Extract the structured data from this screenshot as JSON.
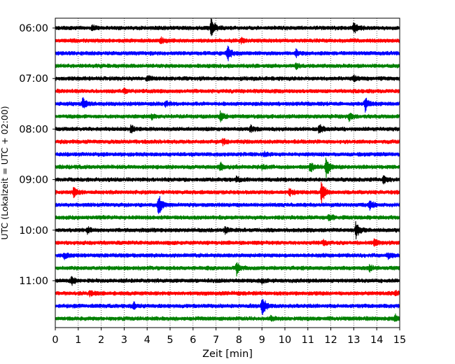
{
  "chart_data": {
    "type": "line",
    "title": "",
    "xlabel": "Zeit  [min]",
    "ylabel": "UTC (Lokalzeit = UTC + 02:00)",
    "xlim": [
      0,
      15
    ],
    "x_ticks": [
      "0",
      "1",
      "2",
      "3",
      "4",
      "5",
      "6",
      "7",
      "8",
      "9",
      "10",
      "11",
      "12",
      "13",
      "14",
      "15"
    ],
    "y_ticks": [
      "06:00",
      "07:00",
      "08:00",
      "09:00",
      "10:00",
      "11:00"
    ],
    "grid_x": true,
    "trace_interval_minutes": 15,
    "colors_cycle": [
      "#000000",
      "#ff0000",
      "#0000ff",
      "#008000"
    ],
    "series": [
      {
        "start": "06:00",
        "color": "#000000",
        "events": [
          {
            "t": 6.8,
            "amp": 1.0
          },
          {
            "t": 13.0,
            "amp": 0.55
          },
          {
            "t": 1.6,
            "amp": 0.2
          }
        ]
      },
      {
        "start": "06:15",
        "color": "#ff0000",
        "events": [
          {
            "t": 4.6,
            "amp": 0.25
          },
          {
            "t": 8.1,
            "amp": 0.2
          }
        ]
      },
      {
        "start": "06:30",
        "color": "#0000ff",
        "events": [
          {
            "t": 7.5,
            "amp": 0.7
          },
          {
            "t": 10.5,
            "amp": 0.25
          }
        ]
      },
      {
        "start": "06:45",
        "color": "#008000",
        "events": [
          {
            "t": 10.5,
            "amp": 0.2
          }
        ]
      },
      {
        "start": "07:00",
        "color": "#000000",
        "events": [
          {
            "t": 4.0,
            "amp": 0.2
          },
          {
            "t": 13.0,
            "amp": 0.2
          }
        ]
      },
      {
        "start": "07:15",
        "color": "#ff0000",
        "events": [
          {
            "t": 3.0,
            "amp": 0.15
          }
        ]
      },
      {
        "start": "07:30",
        "color": "#0000ff",
        "events": [
          {
            "t": 1.2,
            "amp": 0.55
          },
          {
            "t": 13.5,
            "amp": 0.6
          },
          {
            "t": 4.8,
            "amp": 0.2
          }
        ]
      },
      {
        "start": "07:45",
        "color": "#008000",
        "events": [
          {
            "t": 7.2,
            "amp": 0.4
          },
          {
            "t": 12.8,
            "amp": 0.3
          },
          {
            "t": 4.2,
            "amp": 0.2
          }
        ]
      },
      {
        "start": "08:00",
        "color": "#000000",
        "events": [
          {
            "t": 11.5,
            "amp": 0.5
          },
          {
            "t": 3.3,
            "amp": 0.3
          },
          {
            "t": 8.5,
            "amp": 0.3
          }
        ]
      },
      {
        "start": "08:15",
        "color": "#ff0000",
        "events": [
          {
            "t": 7.3,
            "amp": 0.2
          }
        ]
      },
      {
        "start": "08:30",
        "color": "#0000ff",
        "events": [
          {
            "t": 9.1,
            "amp": 0.15
          }
        ]
      },
      {
        "start": "08:45",
        "color": "#008000",
        "events": [
          {
            "t": 11.8,
            "amp": 1.0
          },
          {
            "t": 11.1,
            "amp": 0.5
          },
          {
            "t": 7.2,
            "amp": 0.3
          },
          {
            "t": 9.0,
            "amp": 0.2
          }
        ]
      },
      {
        "start": "09:00",
        "color": "#000000",
        "events": [
          {
            "t": 14.3,
            "amp": 0.35
          },
          {
            "t": 7.9,
            "amp": 0.25
          }
        ]
      },
      {
        "start": "09:15",
        "color": "#ff0000",
        "events": [
          {
            "t": 11.6,
            "amp": 1.1
          },
          {
            "t": 0.8,
            "amp": 0.45
          },
          {
            "t": 10.2,
            "amp": 0.25
          }
        ]
      },
      {
        "start": "09:30",
        "color": "#0000ff",
        "events": [
          {
            "t": 4.5,
            "amp": 1.0
          },
          {
            "t": 13.7,
            "amp": 0.4
          }
        ]
      },
      {
        "start": "09:45",
        "color": "#008000",
        "events": [
          {
            "t": 11.9,
            "amp": 0.3
          }
        ]
      },
      {
        "start": "10:00",
        "color": "#000000",
        "events": [
          {
            "t": 13.1,
            "amp": 0.7
          },
          {
            "t": 1.4,
            "amp": 0.25
          },
          {
            "t": 7.4,
            "amp": 0.25
          }
        ]
      },
      {
        "start": "10:15",
        "color": "#ff0000",
        "events": [
          {
            "t": 13.9,
            "amp": 0.3
          },
          {
            "t": 11.7,
            "amp": 0.2
          }
        ]
      },
      {
        "start": "10:30",
        "color": "#0000ff",
        "events": [
          {
            "t": 0.4,
            "amp": 0.25
          },
          {
            "t": 14.5,
            "amp": 0.25
          }
        ]
      },
      {
        "start": "10:45",
        "color": "#008000",
        "events": [
          {
            "t": 7.9,
            "amp": 0.6
          },
          {
            "t": 13.7,
            "amp": 0.2
          }
        ]
      },
      {
        "start": "11:00",
        "color": "#000000",
        "events": [
          {
            "t": 0.7,
            "amp": 0.4
          },
          {
            "t": 9.0,
            "amp": 0.15
          }
        ]
      },
      {
        "start": "11:15",
        "color": "#ff0000",
        "events": [
          {
            "t": 1.5,
            "amp": 0.2
          },
          {
            "t": 14.8,
            "amp": 0.2
          }
        ]
      },
      {
        "start": "11:30",
        "color": "#0000ff",
        "events": [
          {
            "t": 9.0,
            "amp": 1.0
          },
          {
            "t": 3.4,
            "amp": 0.3
          }
        ]
      },
      {
        "start": "11:45",
        "color": "#008000",
        "events": [
          {
            "t": 9.4,
            "amp": 0.2
          },
          {
            "t": 14.8,
            "amp": 0.35
          }
        ]
      }
    ]
  }
}
